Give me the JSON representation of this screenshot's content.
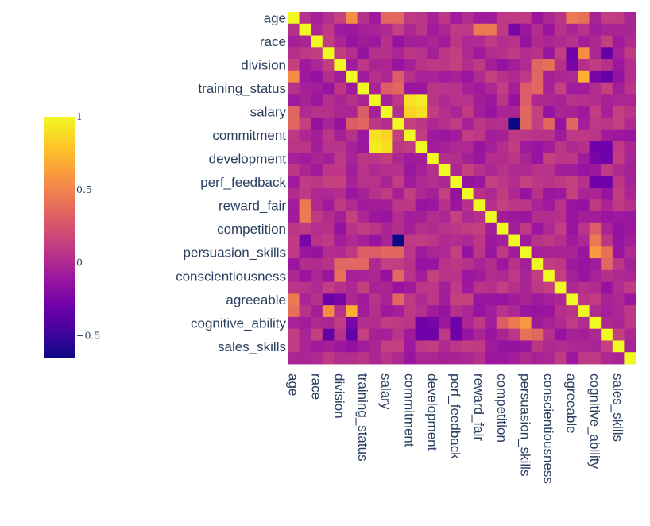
{
  "chart_data": {
    "type": "heatmap",
    "title": "",
    "xlabel": "",
    "ylabel": "",
    "variables": [
      "age",
      "race",
      "division",
      "training_status",
      "salary",
      "commitment",
      "development",
      "perf_feedback",
      "reward_fair",
      "competition",
      "persuasion_skills",
      "conscientiousness",
      "agreeable",
      "cognitive_ability",
      "sales_skills"
    ],
    "grid_size": 30,
    "zmin": -0.65,
    "zmax": 1,
    "colorscale": "plasma",
    "colorbar_ticks": [
      {
        "value": 1,
        "label": "1"
      },
      {
        "value": 0.5,
        "label": "0.5"
      },
      {
        "value": 0,
        "label": "0"
      },
      {
        "value": -0.5,
        "label": "−0.5"
      }
    ],
    "highlights": [
      {
        "row": 0,
        "col": 5,
        "value": 0.55
      },
      {
        "row": 0,
        "col": 8,
        "value": 0.35
      },
      {
        "row": 0,
        "col": 9,
        "value": 0.35
      },
      {
        "row": 0,
        "col": 24,
        "value": 0.45
      },
      {
        "row": 0,
        "col": 25,
        "value": 0.4
      },
      {
        "row": 1,
        "col": 17,
        "value": 0.45
      },
      {
        "row": 3,
        "col": 25,
        "value": -0.5
      },
      {
        "row": 4,
        "col": 21,
        "value": 0.35
      },
      {
        "row": 4,
        "col": 22,
        "value": 0.4
      },
      {
        "row": 5,
        "col": 0,
        "value": 0.55
      },
      {
        "row": 5,
        "col": 9,
        "value": 0.3
      },
      {
        "row": 5,
        "col": 25,
        "value": 0.7
      },
      {
        "row": 5,
        "col": 26,
        "value": -0.25
      },
      {
        "row": 5,
        "col": 21,
        "value": 0.35
      },
      {
        "row": 6,
        "col": 8,
        "value": 0.3
      },
      {
        "row": 6,
        "col": 9,
        "value": 0.35
      },
      {
        "row": 6,
        "col": 21,
        "value": 0.35
      },
      {
        "row": 6,
        "col": 20,
        "value": 0.3
      },
      {
        "row": 7,
        "col": 11,
        "value": 0.95
      },
      {
        "row": 7,
        "col": 10,
        "value": 0.9
      },
      {
        "row": 8,
        "col": 11,
        "value": 0.9
      },
      {
        "row": 8,
        "col": 10,
        "value": 0.85
      },
      {
        "row": 9,
        "col": 19,
        "value": -0.7
      },
      {
        "row": 9,
        "col": 20,
        "value": -0.35
      },
      {
        "row": 9,
        "col": 24,
        "value": 0.35
      },
      {
        "row": 11,
        "col": 26,
        "value": -0.3
      },
      {
        "row": 12,
        "col": 26,
        "value": -0.25
      },
      {
        "row": 14,
        "col": 26,
        "value": -0.3
      },
      {
        "row": 16,
        "col": 1,
        "value": 0.45
      },
      {
        "row": 19,
        "col": 9,
        "value": -0.75
      },
      {
        "row": 19,
        "col": 1,
        "value": -0.25
      },
      {
        "row": 20,
        "col": 8,
        "value": 0.35
      },
      {
        "row": 20,
        "col": 9,
        "value": 0.35
      },
      {
        "row": 20,
        "col": 7,
        "value": 0.3
      },
      {
        "row": 20,
        "col": 26,
        "value": 0.6
      },
      {
        "row": 20,
        "col": 27,
        "value": 0.4
      },
      {
        "row": 22,
        "col": 9,
        "value": 0.35
      },
      {
        "row": 24,
        "col": 3,
        "value": -0.3
      },
      {
        "row": 24,
        "col": 4,
        "value": -0.25
      },
      {
        "row": 25,
        "col": 3,
        "value": 0.55
      },
      {
        "row": 25,
        "col": 3,
        "value": 0.55
      },
      {
        "row": 26,
        "col": 19,
        "value": 0.45
      },
      {
        "row": 26,
        "col": 18,
        "value": 0.3
      },
      {
        "row": 27,
        "col": 5,
        "value": -0.35
      },
      {
        "row": 27,
        "col": 3,
        "value": -0.35
      },
      {
        "row": 27,
        "col": 11,
        "value": -0.3
      },
      {
        "row": 27,
        "col": 12,
        "value": -0.3
      },
      {
        "row": 27,
        "col": 14,
        "value": -0.3
      },
      {
        "row": 27,
        "col": 21,
        "value": 0.35
      }
    ]
  }
}
